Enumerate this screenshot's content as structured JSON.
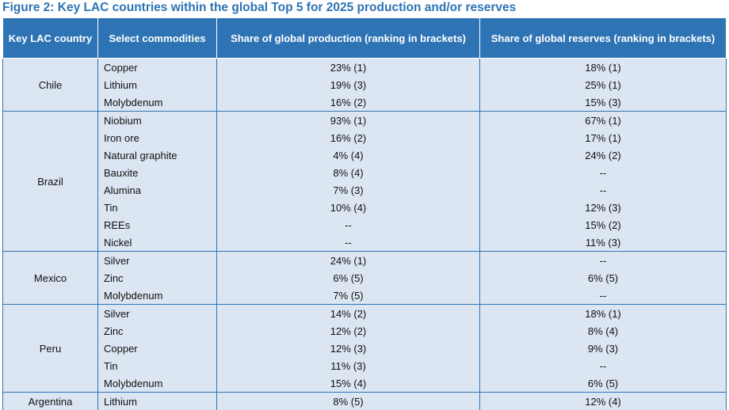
{
  "title": "Figure 2: Key LAC countries within the global Top 5 for 2025 production and/or reserves",
  "table": {
    "header": [
      "Key LAC country",
      "Select commodities",
      "Share of global production (ranking in brackets)",
      "Share of global reserves (ranking in brackets)"
    ],
    "groups": [
      {
        "country": "Chile",
        "rows": [
          [
            "Copper",
            "23% (1)",
            "18% (1)"
          ],
          [
            "Lithium",
            "19% (3)",
            "25% (1)"
          ],
          [
            "Molybdenum",
            "16% (2)",
            "15% (3)"
          ]
        ]
      },
      {
        "country": "Brazil",
        "rows": [
          [
            "Niobium",
            "93% (1)",
            "67% (1)"
          ],
          [
            "Iron ore",
            "16% (2)",
            "17% (1)"
          ],
          [
            "Natural graphite",
            "4% (4)",
            "24% (2)"
          ],
          [
            "Bauxite",
            "8% (4)",
            "--"
          ],
          [
            "Alumina",
            "7% (3)",
            "--"
          ],
          [
            "Tin",
            "10% (4)",
            "12% (3)"
          ],
          [
            "REEs",
            "--",
            "15% (2)"
          ],
          [
            "Nickel",
            "--",
            "11% (3)"
          ]
        ]
      },
      {
        "country": "Mexico",
        "rows": [
          [
            "Silver",
            "24% (1)",
            "--"
          ],
          [
            "Zinc",
            "6% (5)",
            "6% (5)"
          ],
          [
            "Molybdenum",
            "7% (5)",
            "--"
          ]
        ]
      },
      {
        "country": "Peru",
        "rows": [
          [
            "Silver",
            "14% (2)",
            "18% (1)"
          ],
          [
            "Zinc",
            "12% (2)",
            "8% (4)"
          ],
          [
            "Copper",
            "12% (3)",
            "9% (3)"
          ],
          [
            "Tin",
            "11% (3)",
            "--"
          ],
          [
            "Molybdenum",
            "15% (4)",
            "6% (5)"
          ]
        ]
      },
      {
        "country": "Argentina",
        "rows": [
          [
            "Lithium",
            "8% (5)",
            "12% (4)"
          ]
        ]
      }
    ]
  }
}
